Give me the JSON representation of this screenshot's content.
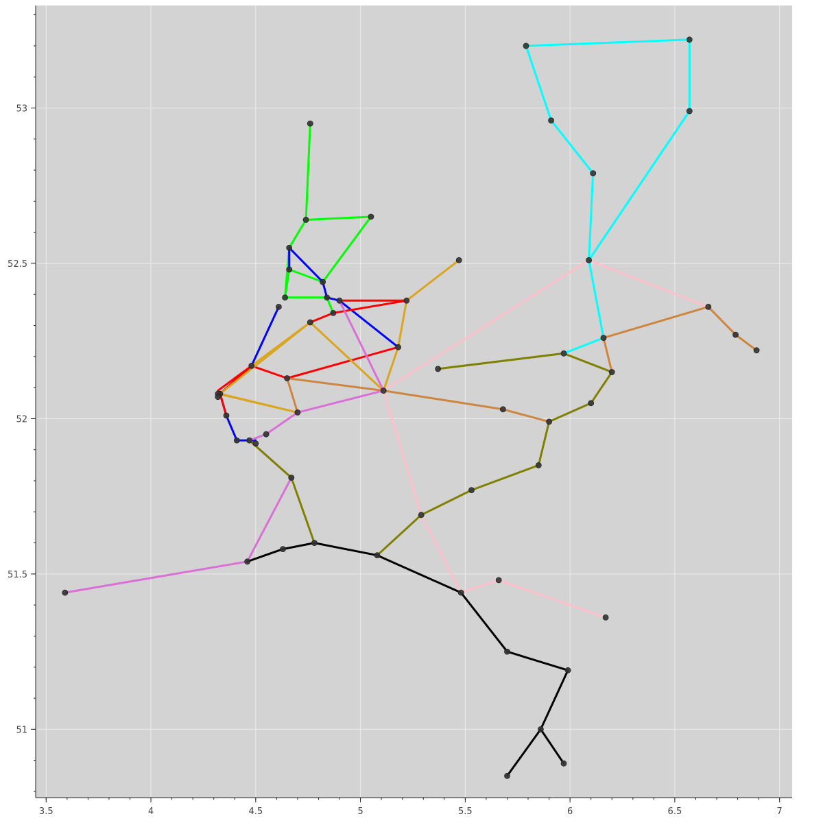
{
  "chart_data": {
    "type": "line",
    "title": "",
    "xlabel": "",
    "ylabel": "",
    "xlim": [
      3.45,
      7.06
    ],
    "ylim": [
      50.78,
      53.33
    ],
    "grid": true,
    "background": "#d3d3d3",
    "x_ticks": [
      3.5,
      4,
      4.5,
      5,
      5.5,
      6,
      6.5,
      7
    ],
    "x_tick_labels": [
      "3.5",
      "4",
      "4.5",
      "5",
      "5.5",
      "6",
      "6.5",
      "7"
    ],
    "y_ticks": [
      51,
      51.5,
      52,
      52.5,
      53
    ],
    "y_tick_labels": [
      "51",
      "51.5",
      "52",
      "52.5",
      "53"
    ],
    "node_color": "#333333",
    "series": [
      {
        "color": "#00ff00",
        "lines": [
          [
            [
              4.76,
              52.95
            ],
            [
              4.74,
              52.64
            ],
            [
              4.66,
              52.55
            ]
          ],
          [
            [
              4.74,
              52.64
            ],
            [
              5.05,
              52.65
            ],
            [
              4.82,
              52.44
            ],
            [
              4.66,
              52.48
            ],
            [
              4.64,
              52.39
            ],
            [
              4.84,
              52.39
            ],
            [
              4.87,
              52.34
            ]
          ],
          [
            [
              4.66,
              52.55
            ],
            [
              4.64,
              52.39
            ]
          ]
        ]
      },
      {
        "color": "#0000ff",
        "lines": [
          [
            [
              4.66,
              52.55
            ],
            [
              4.66,
              52.48
            ]
          ],
          [
            [
              4.66,
              52.55
            ],
            [
              4.82,
              52.44
            ],
            [
              4.84,
              52.39
            ],
            [
              4.9,
              52.38
            ],
            [
              5.18,
              52.23
            ]
          ],
          [
            [
              4.61,
              52.36
            ],
            [
              4.48,
              52.17
            ],
            [
              4.33,
              52.08
            ],
            [
              4.36,
              52.01
            ],
            [
              4.41,
              51.93
            ],
            [
              4.5,
              51.93
            ]
          ]
        ]
      },
      {
        "color": "#ff0000",
        "lines": [
          [
            [
              4.9,
              52.38
            ],
            [
              5.22,
              52.38
            ],
            [
              4.87,
              52.34
            ],
            [
              4.76,
              52.31
            ]
          ],
          [
            [
              5.18,
              52.23
            ],
            [
              4.65,
              52.13
            ],
            [
              4.48,
              52.17
            ],
            [
              4.33,
              52.08
            ],
            [
              4.36,
              52.01
            ]
          ],
          [
            [
              4.48,
              52.17
            ],
            [
              4.32,
              52.09
            ]
          ]
        ]
      },
      {
        "color": "#daa520",
        "lines": [
          [
            [
              5.47,
              52.51
            ],
            [
              5.22,
              52.38
            ],
            [
              5.18,
              52.23
            ],
            [
              5.11,
              52.09
            ],
            [
              4.76,
              52.31
            ],
            [
              4.33,
              52.08
            ],
            [
              4.7,
              52.02
            ],
            [
              4.32,
              52.08
            ]
          ],
          [
            [
              4.48,
              52.17
            ],
            [
              4.76,
              52.31
            ]
          ]
        ]
      },
      {
        "color": "#cd853f",
        "lines": [
          [
            [
              4.7,
              52.02
            ],
            [
              4.65,
              52.13
            ],
            [
              5.11,
              52.09
            ],
            [
              5.68,
              52.03
            ],
            [
              5.9,
              51.99
            ]
          ],
          [
            [
              6.16,
              52.26
            ],
            [
              6.2,
              52.15
            ]
          ],
          [
            [
              6.16,
              52.26
            ],
            [
              6.66,
              52.36
            ],
            [
              6.79,
              52.27
            ],
            [
              6.89,
              52.22
            ]
          ]
        ]
      },
      {
        "color": "#da70d6",
        "lines": [
          [
            [
              4.9,
              52.38
            ],
            [
              5.11,
              52.09
            ],
            [
              4.7,
              52.02
            ],
            [
              4.55,
              51.95
            ],
            [
              4.47,
              51.93
            ],
            [
              4.67,
              51.81
            ],
            [
              4.46,
              51.54
            ],
            [
              3.59,
              51.44
            ]
          ]
        ]
      },
      {
        "color": "#808000",
        "lines": [
          [
            [
              4.47,
              51.93
            ],
            [
              4.67,
              51.81
            ],
            [
              4.78,
              51.6
            ]
          ],
          [
            [
              5.08,
              51.56
            ],
            [
              5.29,
              51.69
            ],
            [
              5.53,
              51.77
            ],
            [
              5.85,
              51.85
            ],
            [
              5.9,
              51.99
            ],
            [
              6.1,
              52.05
            ],
            [
              6.2,
              52.15
            ],
            [
              5.97,
              52.21
            ],
            [
              5.37,
              52.16
            ]
          ]
        ]
      },
      {
        "color": "#ffc0cb",
        "lines": [
          [
            [
              5.11,
              52.09
            ],
            [
              6.09,
              52.51
            ],
            [
              6.66,
              52.36
            ]
          ],
          [
            [
              5.11,
              52.09
            ],
            [
              5.29,
              51.69
            ],
            [
              5.48,
              51.44
            ],
            [
              5.66,
              51.48
            ],
            [
              6.17,
              51.36
            ]
          ]
        ]
      },
      {
        "color": "#00ffff",
        "lines": [
          [
            [
              5.79,
              53.2
            ],
            [
              6.57,
              53.22
            ],
            [
              6.57,
              52.99
            ],
            [
              6.09,
              52.51
            ],
            [
              6.11,
              52.79
            ],
            [
              5.91,
              52.96
            ],
            [
              5.79,
              53.2
            ]
          ],
          [
            [
              6.09,
              52.51
            ],
            [
              6.16,
              52.26
            ],
            [
              5.97,
              52.21
            ]
          ]
        ]
      },
      {
        "color": "#000000",
        "lines": [
          [
            [
              4.46,
              51.54
            ],
            [
              4.63,
              51.58
            ],
            [
              4.78,
              51.6
            ],
            [
              5.08,
              51.56
            ],
            [
              5.48,
              51.44
            ],
            [
              5.7,
              51.25
            ],
            [
              5.99,
              51.19
            ],
            [
              5.86,
              51.0
            ],
            [
              5.7,
              50.85
            ]
          ],
          [
            [
              5.86,
              51.0
            ],
            [
              5.97,
              50.89
            ]
          ]
        ]
      }
    ],
    "nodes": [
      [
        4.76,
        52.95
      ],
      [
        4.74,
        52.64
      ],
      [
        5.05,
        52.65
      ],
      [
        4.66,
        52.55
      ],
      [
        4.66,
        52.48
      ],
      [
        4.82,
        52.44
      ],
      [
        4.64,
        52.39
      ],
      [
        4.84,
        52.39
      ],
      [
        4.9,
        52.38
      ],
      [
        4.61,
        52.36
      ],
      [
        4.87,
        52.34
      ],
      [
        5.22,
        52.38
      ],
      [
        4.76,
        52.31
      ],
      [
        5.18,
        52.23
      ],
      [
        4.48,
        52.17
      ],
      [
        4.65,
        52.13
      ],
      [
        5.11,
        52.09
      ],
      [
        4.33,
        52.08
      ],
      [
        4.32,
        52.08
      ],
      [
        4.32,
        52.07
      ],
      [
        4.36,
        52.01
      ],
      [
        4.7,
        52.02
      ],
      [
        4.55,
        51.95
      ],
      [
        4.47,
        51.93
      ],
      [
        4.41,
        51.93
      ],
      [
        4.5,
        51.92
      ],
      [
        4.67,
        51.81
      ],
      [
        4.46,
        51.54
      ],
      [
        4.63,
        51.58
      ],
      [
        4.78,
        51.6
      ],
      [
        5.08,
        51.56
      ],
      [
        3.59,
        51.44
      ],
      [
        5.47,
        52.51
      ],
      [
        5.37,
        52.16
      ],
      [
        5.68,
        52.03
      ],
      [
        5.9,
        51.99
      ],
      [
        6.1,
        52.05
      ],
      [
        6.2,
        52.15
      ],
      [
        5.97,
        52.21
      ],
      [
        6.16,
        52.26
      ],
      [
        6.09,
        52.51
      ],
      [
        6.66,
        52.36
      ],
      [
        6.79,
        52.27
      ],
      [
        6.89,
        52.22
      ],
      [
        5.79,
        53.2
      ],
      [
        6.57,
        53.22
      ],
      [
        6.57,
        52.99
      ],
      [
        5.91,
        52.96
      ],
      [
        6.11,
        52.79
      ],
      [
        5.29,
        51.69
      ],
      [
        5.53,
        51.77
      ],
      [
        5.85,
        51.85
      ],
      [
        5.48,
        51.44
      ],
      [
        5.66,
        51.48
      ],
      [
        6.17,
        51.36
      ],
      [
        5.7,
        51.25
      ],
      [
        5.99,
        51.19
      ],
      [
        5.86,
        51.0
      ],
      [
        5.97,
        50.89
      ],
      [
        5.7,
        50.85
      ]
    ]
  }
}
